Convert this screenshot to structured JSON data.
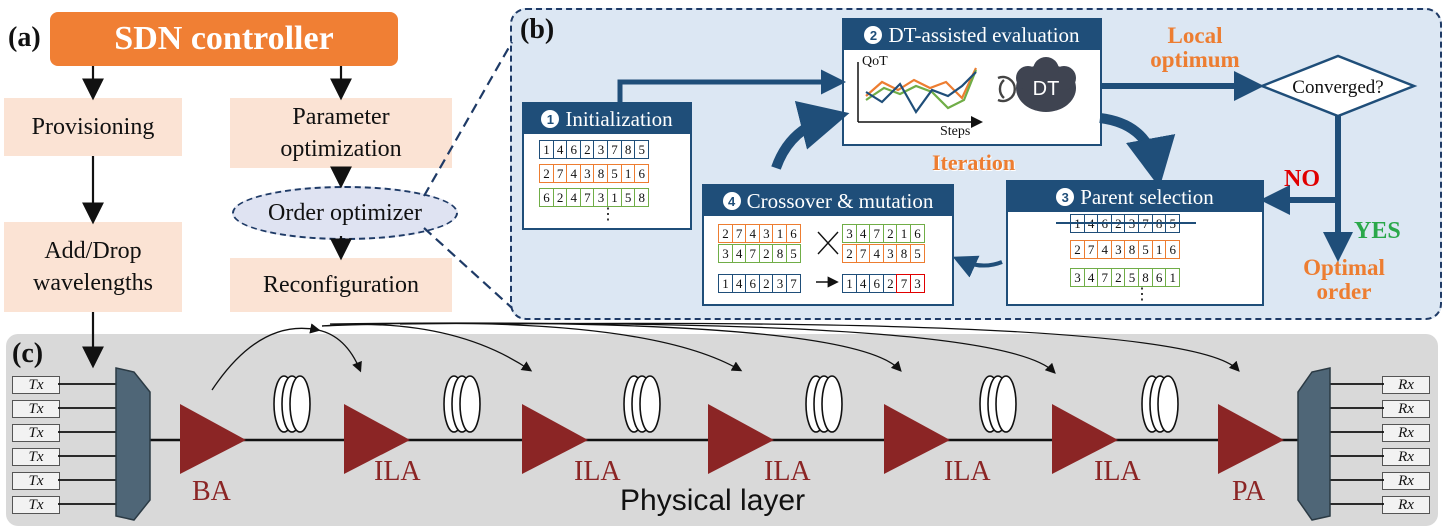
{
  "panels": {
    "a": "(a)",
    "b": "(b)",
    "c": "(c)"
  },
  "panel_a": {
    "controller": "SDN controller",
    "provisioning": "Provisioning",
    "add_drop_line1": "Add/Drop",
    "add_drop_line2": "wavelengths",
    "param_line1": "Parameter",
    "param_line2": "optimization",
    "order_optimizer": "Order optimizer",
    "reconfiguration": "Reconfiguration"
  },
  "panel_b": {
    "init": {
      "num": "1",
      "title": "Initialization",
      "rows": [
        [
          "1",
          "4",
          "6",
          "2",
          "3",
          "7",
          "8",
          "5"
        ],
        [
          "2",
          "7",
          "4",
          "3",
          "8",
          "5",
          "1",
          "6"
        ],
        [
          "6",
          "2",
          "4",
          "7",
          "3",
          "1",
          "5",
          "8"
        ]
      ],
      "ellipsis": "⋮"
    },
    "eval": {
      "num": "2",
      "title": "DT-assisted evaluation",
      "qot": "QoT",
      "steps": "Steps",
      "dt": "DT"
    },
    "select": {
      "num": "3",
      "title": "Parent selection",
      "rows": [
        [
          "1",
          "4",
          "6",
          "2",
          "3",
          "7",
          "8",
          "5"
        ],
        [
          "2",
          "7",
          "4",
          "3",
          "8",
          "5",
          "1",
          "6"
        ],
        [
          "3",
          "4",
          "7",
          "2",
          "5",
          "8",
          "6",
          "1"
        ]
      ],
      "ellipsis": "⋮"
    },
    "cross": {
      "num": "4",
      "title": "Crossover & mutation",
      "left_rows": [
        [
          "2",
          "7",
          "4",
          "3",
          "1",
          "6"
        ],
        [
          "3",
          "4",
          "7",
          "2",
          "8",
          "5"
        ],
        [
          "1",
          "4",
          "6",
          "2",
          "3",
          "7"
        ]
      ],
      "right_rows": [
        [
          "3",
          "4",
          "7",
          "2",
          "1",
          "6"
        ],
        [
          "2",
          "7",
          "4",
          "3",
          "8",
          "5"
        ],
        [
          "1",
          "4",
          "6",
          "2",
          "7",
          "3"
        ]
      ]
    },
    "local_optimum_1": "Local",
    "local_optimum_2": "optimum",
    "converged": "Converged?",
    "iteration": "Iteration",
    "no": "NO",
    "yes": "YES",
    "optimal_1": "Optimal",
    "optimal_2": "order"
  },
  "panel_c": {
    "tx": [
      "Tx",
      "Tx",
      "Tx",
      "Tx",
      "Tx",
      "Tx"
    ],
    "rx": [
      "Rx",
      "Rx",
      "Rx",
      "Rx",
      "Rx",
      "Rx"
    ],
    "amps": [
      "BA",
      "ILA",
      "ILA",
      "ILA",
      "ILA",
      "ILA",
      "PA"
    ],
    "layer": "Physical layer"
  },
  "colors": {
    "controller": "#f07f34",
    "pink": "#fbe3d4",
    "navy": "#1f4e79",
    "amp": "#8b2525",
    "panel_b_bg": "#dce7f3",
    "panel_c_bg": "#d9d9d9"
  }
}
